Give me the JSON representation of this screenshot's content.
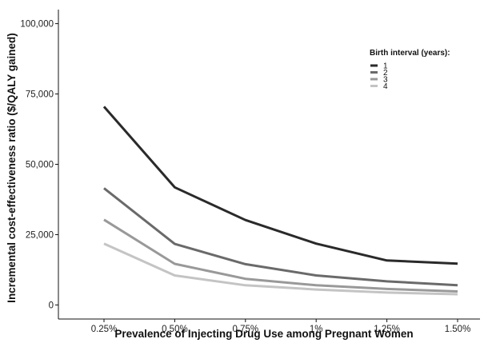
{
  "chart_data": {
    "type": "line",
    "title": "",
    "xlabel": "Prevalence of Injecting Drug Use among Pregnant Women",
    "ylabel": "Incremental cost-effectiveness ratio ($/QALY gained)",
    "categories": [
      "0.25%",
      "0.50%",
      "0.75%",
      "1%",
      "1.25%",
      "1.50%"
    ],
    "y_ticks": [
      0,
      25000,
      50000,
      75000,
      100000
    ],
    "y_tick_labels": [
      "0",
      "25,000",
      "50,000",
      "75,000",
      "100,000"
    ],
    "ylim": [
      -5000,
      105000
    ],
    "grid": false,
    "legend": {
      "title": "Birth interval (years):",
      "placement": "top-right"
    },
    "series": [
      {
        "name": "1",
        "color": "#2a2a2a",
        "values": [
          70500,
          41800,
          30200,
          21800,
          15800,
          14700
        ]
      },
      {
        "name": "2",
        "color": "#6a6a6a",
        "values": [
          41500,
          21700,
          14500,
          10500,
          8400,
          7000
        ]
      },
      {
        "name": "3",
        "color": "#999999",
        "values": [
          30300,
          14600,
          9300,
          7000,
          5700,
          4800
        ]
      },
      {
        "name": "4",
        "color": "#c4c4c4",
        "values": [
          21800,
          10500,
          7000,
          5500,
          4400,
          3800
        ]
      }
    ]
  }
}
